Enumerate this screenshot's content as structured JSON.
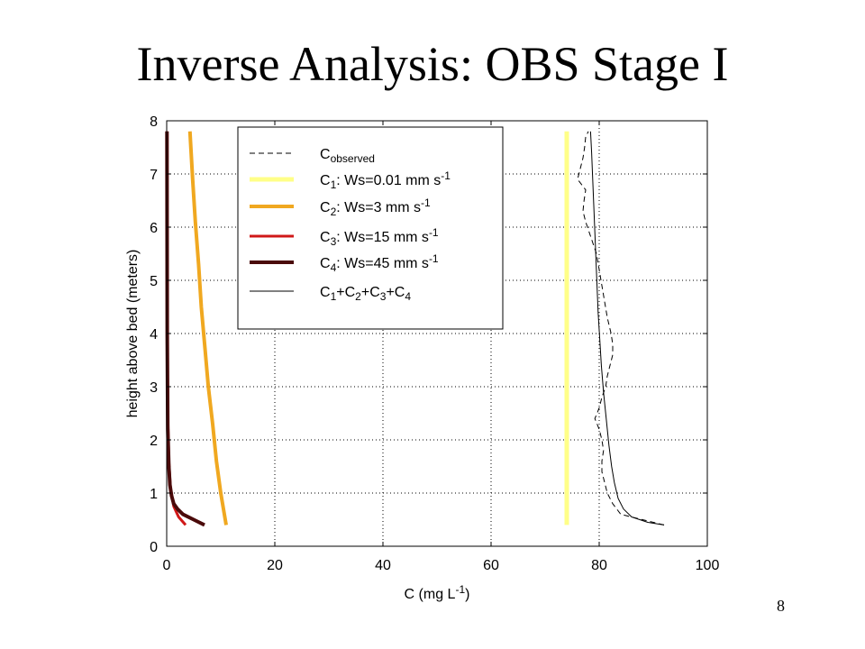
{
  "slide": {
    "title": "Inverse Analysis:  OBS Stage I",
    "page_number": "8"
  },
  "chart_data": {
    "type": "line",
    "xlabel": "C (mg L",
    "xlabel_sup": "-1",
    "xlabel_tail": ")",
    "ylabel": "height above bed (meters)",
    "xlim": [
      0,
      100
    ],
    "ylim": [
      0,
      8
    ],
    "xticks": [
      0,
      20,
      40,
      60,
      80,
      100
    ],
    "yticks": [
      0,
      1,
      2,
      3,
      4,
      5,
      6,
      7,
      8
    ],
    "grid": true,
    "legend_position": "top-left",
    "series": [
      {
        "key": "obs",
        "legend": [
          [
            "C",
            ""
          ],
          [
            "observed",
            "sub"
          ]
        ],
        "color": "#000000",
        "dash": "6,4",
        "width": 1,
        "x": [
          92,
          88,
          84,
          82.5,
          81.5,
          81,
          80.5,
          80.5,
          80.8,
          80.5,
          80,
          79.2,
          80,
          80.5,
          81.2,
          81.5,
          82,
          82.5,
          82.5,
          82.2,
          81.5,
          81,
          80.5,
          80,
          79.5,
          78.5,
          77.5,
          77,
          77.2,
          77.5,
          76,
          76.5,
          77,
          77.3,
          77.5,
          78
        ],
        "y": [
          0.4,
          0.5,
          0.6,
          0.8,
          1.0,
          1.2,
          1.4,
          1.6,
          1.8,
          2.0,
          2.2,
          2.4,
          2.6,
          2.8,
          3.0,
          3.2,
          3.4,
          3.6,
          3.8,
          4.0,
          4.3,
          4.6,
          4.9,
          5.2,
          5.5,
          5.8,
          6.1,
          6.3,
          6.5,
          6.7,
          6.9,
          7.1,
          7.3,
          7.5,
          7.7,
          7.8
        ]
      },
      {
        "key": "c1",
        "legend": [
          [
            "C",
            ""
          ],
          [
            "1",
            "sub"
          ],
          [
            ": Ws=0.01 mm s",
            ""
          ],
          [
            "-1",
            "sup"
          ]
        ],
        "color": "#ffff88",
        "dash": "",
        "width": 5,
        "x": [
          74,
          74
        ],
        "y": [
          0.4,
          7.8
        ]
      },
      {
        "key": "c2",
        "legend": [
          [
            "C",
            ""
          ],
          [
            "2",
            "sub"
          ],
          [
            ": Ws=3 mm s",
            ""
          ],
          [
            "-1",
            "sup"
          ]
        ],
        "color": "#f0a820",
        "dash": "",
        "width": 4,
        "x": [
          11,
          10,
          9.2,
          8.5,
          7.7,
          7.1,
          6.4,
          5.9,
          5.3,
          4.8,
          4.3
        ],
        "y": [
          0.4,
          1.0,
          1.6,
          2.3,
          3.0,
          3.7,
          4.5,
          5.3,
          6.1,
          6.9,
          7.8
        ]
      },
      {
        "key": "c3",
        "legend": [
          [
            "C",
            ""
          ],
          [
            "3",
            "sub"
          ],
          [
            ": Ws=15 mm s",
            ""
          ],
          [
            "-1",
            "sup"
          ]
        ],
        "color": "#d01818",
        "dash": "",
        "width": 3,
        "x": [
          3.5,
          2.2,
          1.3,
          0.7,
          0.4,
          0.2,
          0.1,
          0.05
        ],
        "y": [
          0.4,
          0.55,
          0.75,
          1.1,
          1.6,
          2.5,
          4.0,
          7.8
        ]
      },
      {
        "key": "c4",
        "legend": [
          [
            "C",
            ""
          ],
          [
            "4",
            "sub"
          ],
          [
            ": Ws=45 mm s",
            ""
          ],
          [
            "-1",
            "sup"
          ]
        ],
        "color": "#4a0a0a",
        "dash": "",
        "width": 4,
        "x": [
          7,
          5,
          3,
          2,
          1.3,
          0.9,
          0.6,
          0.4,
          0.2,
          0.1,
          0.05
        ],
        "y": [
          0.4,
          0.5,
          0.6,
          0.7,
          0.8,
          0.95,
          1.15,
          1.5,
          2.2,
          4.0,
          7.8
        ]
      },
      {
        "key": "sum",
        "legend": [
          [
            "C",
            ""
          ],
          [
            "1",
            "sub"
          ],
          [
            "+C",
            ""
          ],
          [
            "2",
            "sub"
          ],
          [
            "+C",
            ""
          ],
          [
            "3",
            "sub"
          ],
          [
            "+C",
            ""
          ],
          [
            "4",
            "sub"
          ]
        ],
        "color": "#000000",
        "dash": "",
        "width": 1,
        "x": [
          92,
          89,
          86,
          84.5,
          83.5,
          82.8,
          82.3,
          81.8,
          81.3,
          80.8,
          80.4,
          80.1,
          79.8,
          79.6,
          79.4,
          79.2,
          79.0,
          78.8,
          78.6,
          78.4
        ],
        "y": [
          0.4,
          0.45,
          0.55,
          0.7,
          0.9,
          1.2,
          1.5,
          1.9,
          2.4,
          2.9,
          3.4,
          3.9,
          4.4,
          4.9,
          5.4,
          5.9,
          6.4,
          6.9,
          7.4,
          7.8
        ]
      }
    ]
  }
}
